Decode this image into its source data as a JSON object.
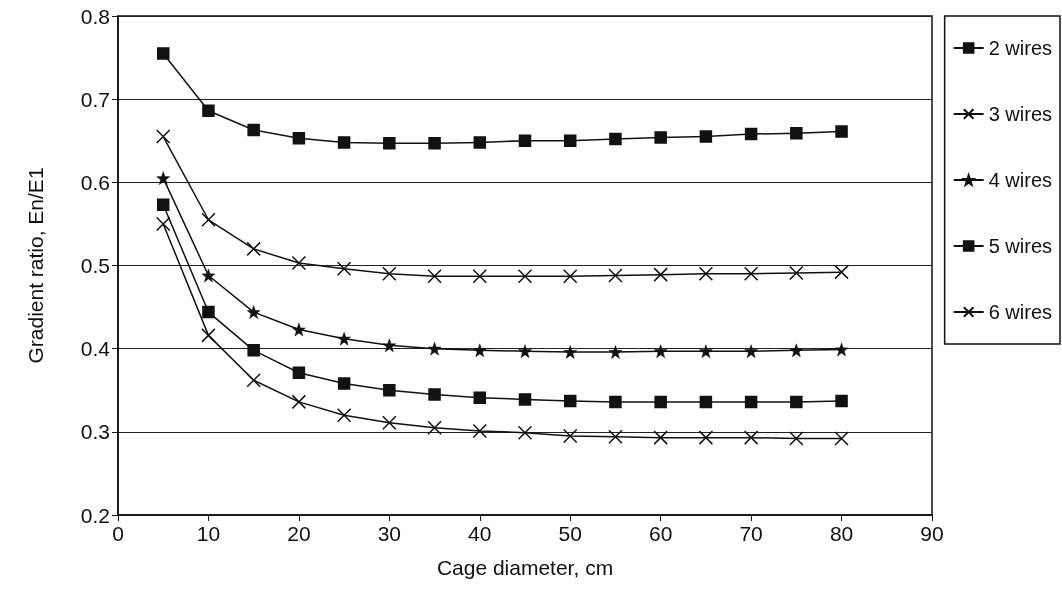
{
  "chart_data": {
    "type": "line",
    "xlabel": "Cage diameter, cm",
    "ylabel": "Gradient ratio, En/E1",
    "x": [
      5,
      10,
      15,
      20,
      25,
      30,
      35,
      40,
      45,
      50,
      55,
      60,
      65,
      70,
      75,
      80
    ],
    "series": [
      {
        "name": "2 wires",
        "color": "#111111",
        "marker": "square",
        "values": [
          0.755,
          0.686,
          0.663,
          0.653,
          0.648,
          0.647,
          0.647,
          0.648,
          0.65,
          0.65,
          0.652,
          0.654,
          0.655,
          0.658,
          0.659,
          0.661
        ]
      },
      {
        "name": "3 wires",
        "color": "#111111",
        "marker": "cross",
        "values": [
          0.655,
          0.555,
          0.52,
          0.503,
          0.496,
          0.49,
          0.487,
          0.487,
          0.487,
          0.487,
          0.488,
          0.489,
          0.49,
          0.49,
          0.491,
          0.492
        ]
      },
      {
        "name": "4 wires",
        "color": "#111111",
        "marker": "star",
        "values": [
          0.605,
          0.488,
          0.444,
          0.423,
          0.412,
          0.404,
          0.4,
          0.398,
          0.397,
          0.396,
          0.396,
          0.397,
          0.397,
          0.397,
          0.398,
          0.399
        ]
      },
      {
        "name": "5 wires",
        "color": "#111111",
        "marker": "square",
        "values": [
          0.573,
          0.444,
          0.398,
          0.371,
          0.358,
          0.35,
          0.345,
          0.341,
          0.339,
          0.337,
          0.336,
          0.336,
          0.336,
          0.336,
          0.336,
          0.337
        ]
      },
      {
        "name": "6 wires",
        "color": "#111111",
        "marker": "cross",
        "values": [
          0.55,
          0.416,
          0.362,
          0.336,
          0.32,
          0.311,
          0.305,
          0.301,
          0.299,
          0.295,
          0.294,
          0.293,
          0.293,
          0.293,
          0.292,
          0.292
        ]
      }
    ],
    "xlim": [
      0,
      90
    ],
    "xticks": [
      0,
      10,
      20,
      30,
      40,
      50,
      60,
      70,
      80,
      90
    ],
    "ylim": [
      0.2,
      0.8
    ],
    "yticks": [
      0.2,
      0.3,
      0.4,
      0.5,
      0.6,
      0.7,
      0.8
    ],
    "grid": "y",
    "legend": "right"
  }
}
